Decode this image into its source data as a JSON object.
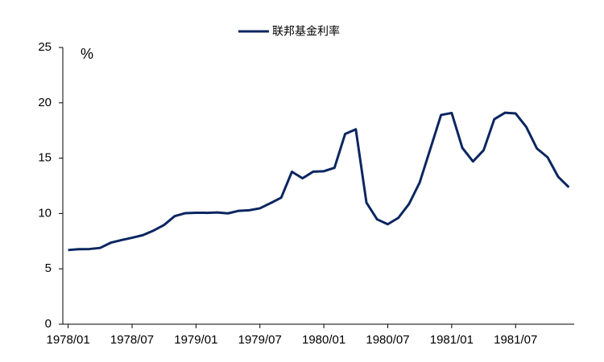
{
  "chart_data": {
    "type": "line",
    "unit_label": "%",
    "categories": [
      "1978/01",
      null,
      null,
      null,
      null,
      null,
      "1978/07",
      null,
      null,
      null,
      null,
      null,
      "1979/01",
      null,
      null,
      null,
      null,
      null,
      "1979/07",
      null,
      null,
      null,
      null,
      null,
      "1980/01",
      null,
      null,
      null,
      null,
      null,
      "1980/07",
      null,
      null,
      null,
      null,
      null,
      "1981/01",
      null,
      null,
      null,
      null,
      null,
      "1981/07",
      null,
      null,
      null,
      null,
      null
    ],
    "series": [
      {
        "name": "联邦基金利率",
        "color": "#0b2660",
        "values": [
          6.7,
          6.78,
          6.79,
          6.89,
          7.36,
          7.6,
          7.81,
          8.04,
          8.45,
          8.96,
          9.76,
          10.03,
          10.07,
          10.06,
          10.09,
          10.01,
          10.24,
          10.29,
          10.47,
          10.94,
          11.43,
          13.77,
          13.18,
          13.78,
          13.82,
          14.13,
          17.19,
          17.61,
          10.98,
          9.47,
          9.03,
          9.61,
          10.87,
          12.81,
          15.85,
          18.9,
          19.08,
          15.93,
          14.7,
          15.72,
          18.52,
          19.1,
          19.04,
          17.82,
          15.87,
          15.08,
          13.31,
          12.37
        ]
      }
    ],
    "ylim": [
      0,
      25
    ],
    "yticks": [
      0,
      5,
      10,
      15,
      20,
      25
    ],
    "grid": false,
    "legend": "top"
  }
}
